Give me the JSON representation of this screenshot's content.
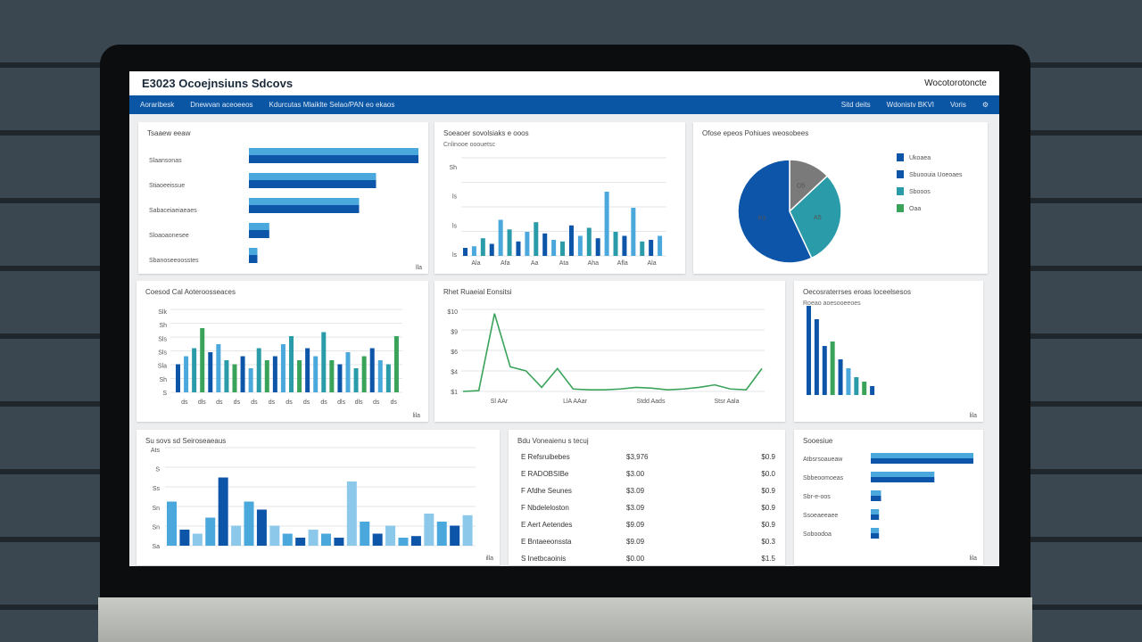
{
  "header": {
    "title": "E3023 Ocoejnsiuns Sdcovs",
    "user": "Wocotorotoncte"
  },
  "nav": {
    "left": [
      "Aoraribesk",
      "Dnewvan aceoeeos",
      "Kdurcutas Mlaiklte Selao/PAN eo ekaos"
    ],
    "right": [
      "Sitd deits",
      "Wdonistv BKVI",
      "Voris"
    ],
    "settings_icon": "gear-icon"
  },
  "colors": {
    "dark_blue": "#0d55a8",
    "light_blue": "#4aa8dc",
    "teal": "#2a9ba8",
    "green": "#3aa35a",
    "gray": "#7a7a7a",
    "nav": "#0b56a4"
  },
  "panels": {
    "p1": {
      "title": "Tsaaew eeaw",
      "footer": "lla"
    },
    "p2": {
      "title": "Soeaoer sovolsiaks e ooos",
      "subtitle": "Cnlinooe ooouetsc"
    },
    "p3": {
      "title": "Ofose epeos Pohiues weosobees"
    },
    "p4": {
      "title": "Coesod Cal Aoteroosseaces",
      "footer": "lila"
    },
    "p5": {
      "title": "Rhet Ruaeial Eonsitsi",
      "footer": ""
    },
    "p6": {
      "title": "Oecosraterrses eroas loceelsesos",
      "subtitle": "Roeao aoesooeeoes",
      "footer": "lila"
    },
    "p7": {
      "title": "Su sovs sd Seiroseaeaus",
      "footer": "illa"
    },
    "p8": {
      "title": "Bdu Voneaienu s tecuj"
    },
    "p9": {
      "title": "Sooesiue",
      "footer": "lila"
    }
  },
  "chart_data": [
    {
      "type": "bar",
      "orientation": "horizontal",
      "categories": [
        "Slaansonas",
        "Stiaoeeissue",
        "Sabaceiaeiaeaes",
        "Sloaoaonesee",
        "Sbanoseeoosstes"
      ],
      "series": [
        {
          "values": [
            100,
            75,
            65,
            12,
            5
          ]
        },
        {
          "values": [
            100,
            75,
            65,
            12,
            5
          ]
        }
      ]
    },
    {
      "type": "bar",
      "yticks": [
        "Sh",
        "ls",
        "ls",
        "ls"
      ],
      "xticks": [
        "Ala",
        "Afa",
        "Aa",
        "Ata",
        "Aha",
        "Afla",
        "Ala"
      ],
      "series": [
        {
          "values": [
            10,
            12,
            22,
            15,
            45,
            33,
            18,
            30,
            42,
            28,
            20,
            18,
            38,
            25,
            35,
            22,
            80,
            30,
            25,
            60,
            18,
            20,
            25
          ]
        }
      ]
    },
    {
      "type": "pie",
      "slices": [
        {
          "label": "O5",
          "value": 13,
          "color": "#7a7a7a"
        },
        {
          "label": "A5",
          "value": 30,
          "color": "#2a9ba8"
        },
        {
          "label": "P3",
          "value": 57,
          "color": "#0d55a8"
        }
      ],
      "legend": [
        "Ukoaea",
        "Sbuoouia Uoeoaes",
        "Sbooos",
        "Oaa"
      ]
    },
    {
      "type": "bar",
      "yticks": [
        "Slk",
        "Sh",
        "Sls",
        "Sls",
        "Sla",
        "Sh",
        "S"
      ],
      "xticks": [
        "ds",
        "dls",
        "ds",
        "ds",
        "ds",
        "ds",
        "ds",
        "ds",
        "ds",
        "dls",
        "dls",
        "ds",
        "ds"
      ],
      "series": [
        {
          "values": [
            35,
            45,
            55,
            80,
            50,
            60,
            40,
            35,
            45,
            30,
            55,
            40,
            45,
            60,
            70,
            40,
            55,
            45,
            75,
            40,
            35,
            50,
            30,
            45,
            55,
            40,
            35,
            70
          ]
        }
      ]
    },
    {
      "type": "line",
      "yticks": [
        "$10",
        "$9",
        "$6",
        "$4",
        "$1"
      ],
      "xticks": [
        "Sl AAr",
        "LlA AAar",
        "Stdd Aads",
        "Stsr Aala"
      ],
      "series": [
        {
          "values": [
            0,
            1,
            95,
            30,
            25,
            5,
            28,
            3,
            2,
            2,
            3,
            5,
            4,
            2,
            3,
            5,
            8,
            3,
            2,
            28
          ]
        }
      ]
    },
    {
      "type": "bar",
      "series": [
        {
          "values": [
            100,
            85,
            55,
            60,
            40,
            30,
            20,
            15,
            10
          ]
        }
      ]
    },
    {
      "type": "bar",
      "yticks": [
        "Ats",
        "S",
        "Ss",
        "Sn",
        "Sn",
        "Sa"
      ],
      "series": [
        {
          "values": [
            55,
            20,
            15,
            35,
            85,
            25,
            55,
            45,
            25,
            15,
            10,
            20,
            15,
            10,
            80,
            30,
            15,
            25,
            10,
            12,
            40,
            30,
            25,
            38
          ]
        }
      ]
    },
    {
      "type": "table",
      "rows": [
        [
          "E Refsruibebes",
          "$3,976",
          "$0.9"
        ],
        [
          "E RADOBSIBe",
          "$3.00",
          "$0.0"
        ],
        [
          "F Afdhe Seunes",
          "$3.09",
          "$0.9"
        ],
        [
          "F Nbdeleloston",
          "$3.09",
          "$0.9"
        ],
        [
          "E Aert Aetendes",
          "$9.09",
          "$0.9"
        ],
        [
          "E Bntaeeonssta",
          "$9.09",
          "$0.3"
        ],
        [
          "S Inetbcaoinis",
          "$0.00",
          "$1.5"
        ]
      ]
    },
    {
      "type": "bar",
      "orientation": "horizontal",
      "categories": [
        "Atbsrsoaueaw",
        "Sbbeoomoeas",
        "Sbr-e-oos",
        "Ssoeaeeaee",
        "Soboodoa"
      ],
      "series": [
        {
          "values": [
            100,
            62,
            10,
            8,
            8
          ]
        }
      ]
    }
  ]
}
